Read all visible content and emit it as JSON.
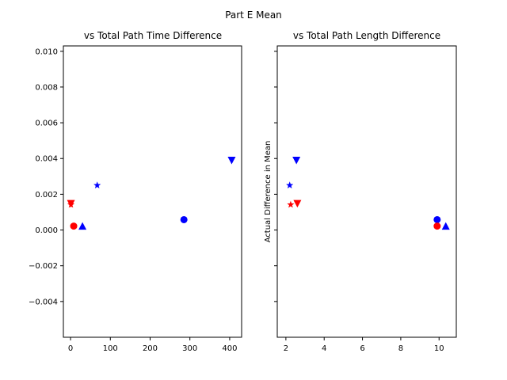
{
  "chart_data": [
    {
      "type": "scatter",
      "suptitle": "Part E Mean",
      "title": "vs Total Path Time Difference",
      "xlabel": "",
      "ylabel": "",
      "xlim": [
        -18,
        430
      ],
      "ylim": [
        -0.006,
        0.0103
      ],
      "xticks": [
        0,
        100,
        200,
        300,
        400
      ],
      "xtick_labels": [
        "0",
        "100",
        "200",
        "300",
        "400"
      ],
      "yticks": [
        -0.004,
        -0.002,
        0.0,
        0.002,
        0.004,
        0.006,
        0.008,
        0.01
      ],
      "ytick_labels": [
        "−0.004",
        "−0.002",
        "0.000",
        "0.002",
        "0.004",
        "0.006",
        "0.008",
        "0.010"
      ],
      "series": [
        {
          "name": "blue-circle",
          "color": "#0000ff",
          "marker": "circle",
          "points": [
            [
              285,
              0.00058
            ]
          ]
        },
        {
          "name": "blue-triangle-down",
          "color": "#0000ff",
          "marker": "triangle-down",
          "points": [
            [
              405,
              0.0039
            ]
          ]
        },
        {
          "name": "blue-star",
          "color": "#0000ff",
          "marker": "star",
          "points": [
            [
              67,
              0.0025
            ]
          ]
        },
        {
          "name": "blue-triangle-up",
          "color": "#0000ff",
          "marker": "triangle-up",
          "points": [
            [
              30,
              0.00022
            ]
          ]
        },
        {
          "name": "red-circle",
          "color": "#ff0000",
          "marker": "circle",
          "points": [
            [
              8,
              0.00022
            ]
          ]
        },
        {
          "name": "red-triangle-down",
          "color": "#ff0000",
          "marker": "triangle-down",
          "points": [
            [
              1,
              0.00148
            ]
          ]
        },
        {
          "name": "red-star",
          "color": "#ff0000",
          "marker": "star",
          "points": [
            [
              1,
              0.00142
            ]
          ]
        }
      ]
    },
    {
      "type": "scatter",
      "title": "vs Total Path Length Difference",
      "xlabel": "",
      "ylabel": "Actual Difference in Mean",
      "xlim": [
        1.55,
        10.9
      ],
      "ylim": [
        -0.006,
        0.0103
      ],
      "xticks": [
        2,
        4,
        6,
        8,
        10
      ],
      "xtick_labels": [
        "2",
        "4",
        "6",
        "8",
        "10"
      ],
      "yticks": [
        -0.004,
        -0.002,
        0.0,
        0.002,
        0.004,
        0.006,
        0.008,
        0.01
      ],
      "ytick_labels": [],
      "series": [
        {
          "name": "blue-circle",
          "color": "#0000ff",
          "marker": "circle",
          "points": [
            [
              9.9,
              0.00058
            ]
          ]
        },
        {
          "name": "blue-triangle-down",
          "color": "#0000ff",
          "marker": "triangle-down",
          "points": [
            [
              2.55,
              0.0039
            ]
          ]
        },
        {
          "name": "blue-star",
          "color": "#0000ff",
          "marker": "star",
          "points": [
            [
              2.2,
              0.0025
            ]
          ]
        },
        {
          "name": "blue-triangle-up",
          "color": "#0000ff",
          "marker": "triangle-up",
          "points": [
            [
              10.35,
              0.00022
            ]
          ]
        },
        {
          "name": "red-circle",
          "color": "#ff0000",
          "marker": "circle",
          "points": [
            [
              9.9,
              0.00022
            ]
          ]
        },
        {
          "name": "red-triangle-down",
          "color": "#ff0000",
          "marker": "triangle-down",
          "points": [
            [
              2.6,
              0.00148
            ]
          ]
        },
        {
          "name": "red-star",
          "color": "#ff0000",
          "marker": "star",
          "points": [
            [
              2.25,
              0.00142
            ]
          ]
        }
      ]
    }
  ]
}
